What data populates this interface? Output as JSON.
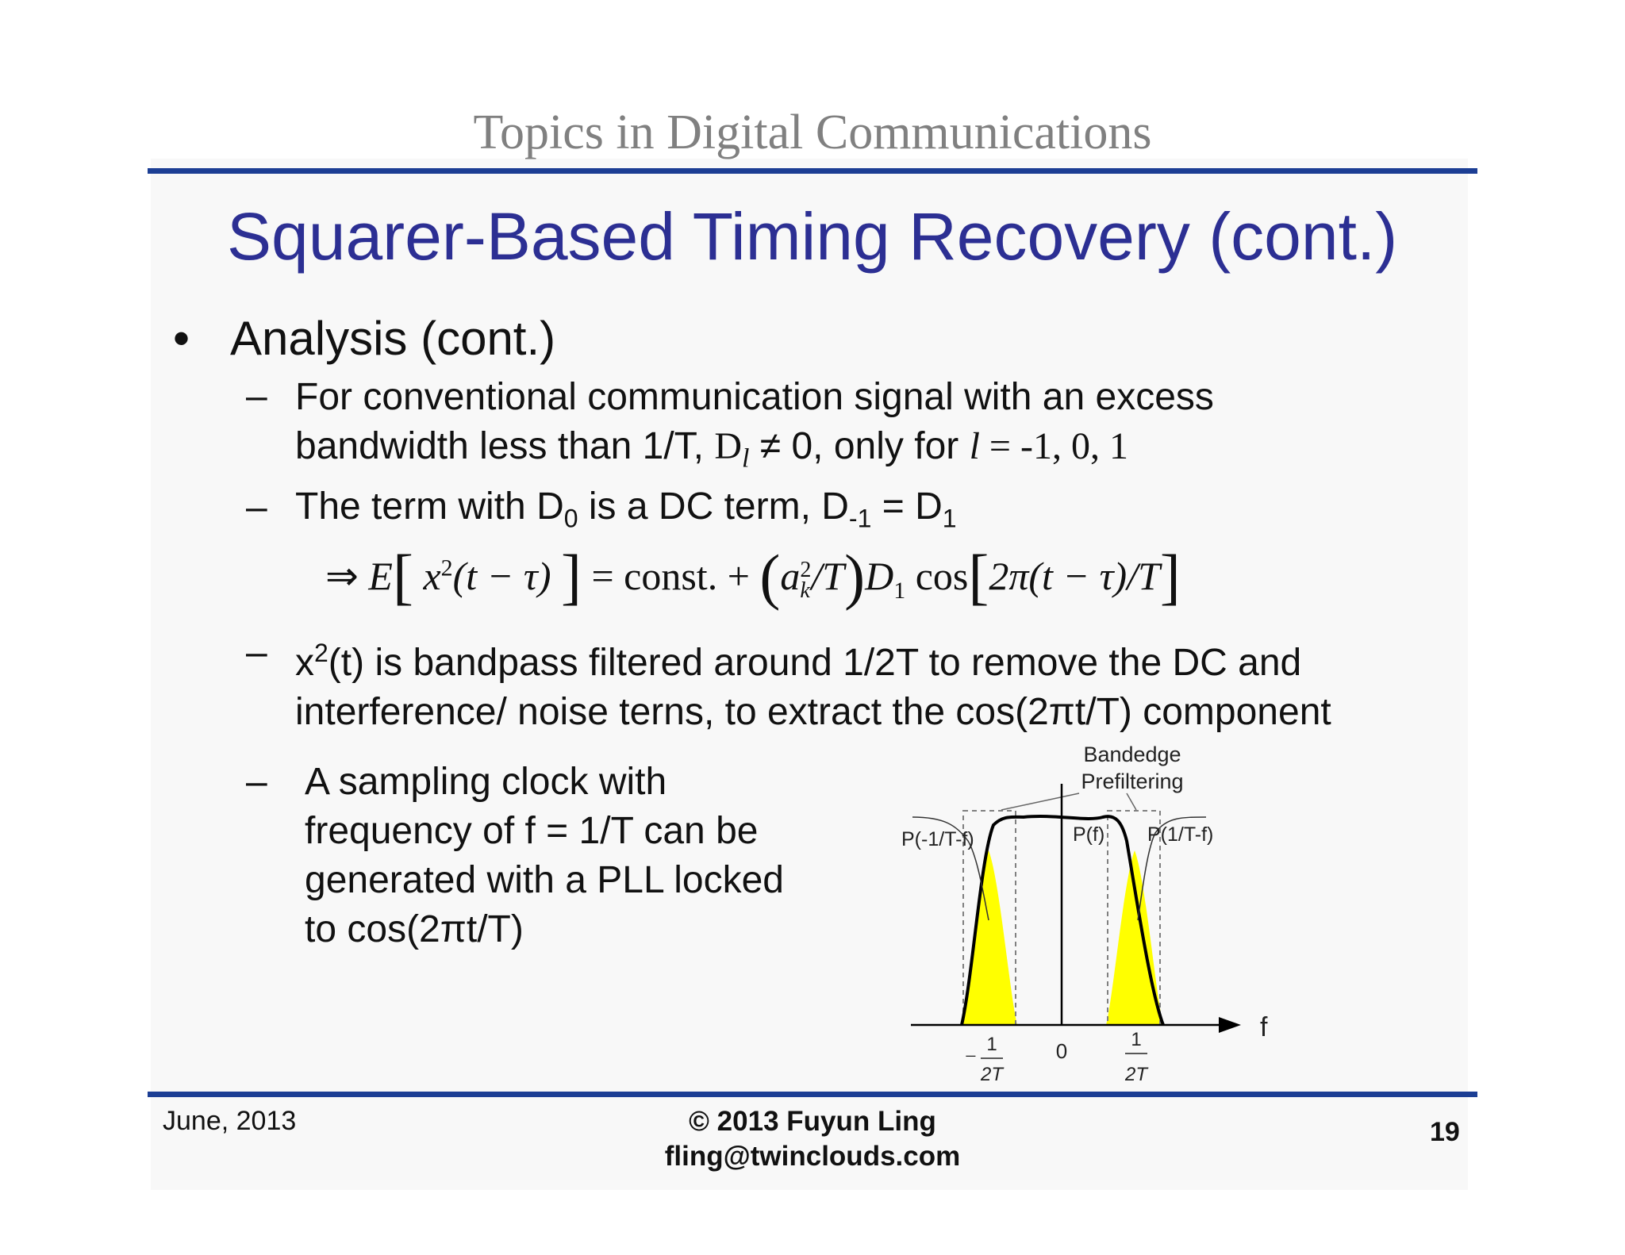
{
  "header": {
    "text": "Topics in Digital Communications"
  },
  "slide": {
    "title": "Squarer-Based Timing Recovery (cont.)",
    "bullet": "Analysis (cont.)",
    "dash_symbol": "–",
    "sub1": {
      "line1": "For conventional communication signal with an excess",
      "line2_a": "bandwidth less than 1/T, ",
      "line2_D": "D",
      "line2_l": "l",
      "line2_b": " ≠ 0, only for ",
      "line2_l2": "l",
      "line2_c": " = -1, 0, 1"
    },
    "sub2": {
      "text_a": "The term with D",
      "sub0": "0",
      "text_b": " is a DC term, D",
      "subm1": "-1",
      "text_c": " = D",
      "sub1": "1"
    },
    "equation": {
      "arrow": "⇒",
      "E": "E",
      "lb": "[",
      "x": "x",
      "sq": "2",
      "arg": "(t − τ)",
      "rb": "]",
      "eq_const": " = const. + ",
      "lp": "(",
      "a": "a",
      "a_sup": "2",
      "a_sub": "k",
      "overT": "/T",
      "rp": ")",
      "D": "D",
      "D_sub": "1",
      "cos": "cos",
      "lb2": "[",
      "inner": "2π(t − τ)/T",
      "rb2": "]"
    },
    "sub3": {
      "a": "x",
      "sup": "2",
      "b": "(t) is bandpass filtered around 1/2T to remove the DC and",
      "line2": "interference/ noise terns, to extract the cos(2πt/T) component"
    },
    "sub4": {
      "line1": "A sampling clock with",
      "line2": "frequency of f = 1/T can be",
      "line3": "generated with a PLL locked",
      "line4": "to cos(2πt/T)"
    }
  },
  "figure": {
    "label_bandedge_1": "Bandedge",
    "label_bandedge_2": "Prefiltering",
    "label_p_neg": "P(-1/T-f)",
    "label_p": "P(f)",
    "label_p_pos": "P(1/T-f)",
    "axis_label": "f",
    "tick_zero": "0",
    "tick_num": "1",
    "tick_den": "2T",
    "tick_minus": "−",
    "fill_color": "#ffff00"
  },
  "footer": {
    "date": "June, 2013",
    "copyright": "© 2013 Fuyun Ling",
    "email": "fling@twinclouds.com",
    "page": "19"
  }
}
